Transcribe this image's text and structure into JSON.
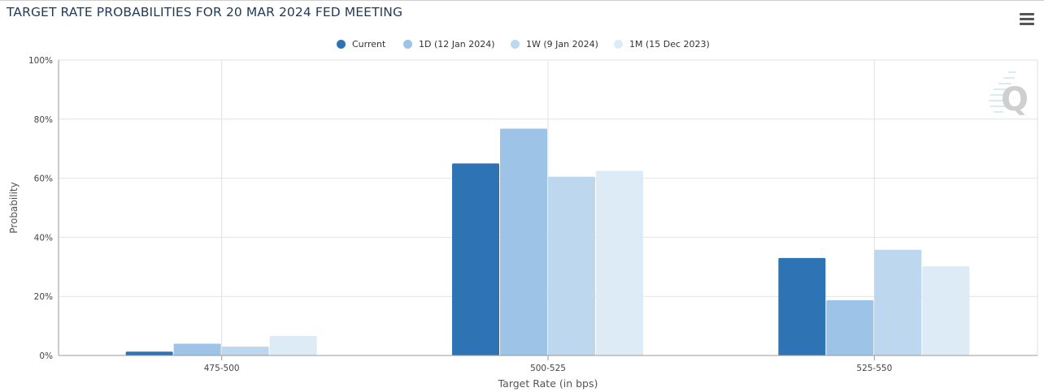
{
  "header": {
    "title": "TARGET RATE PROBABILITIES FOR 20 MAR 2024 FED MEETING",
    "menu_icon": "hamburger-menu-icon"
  },
  "watermark": {
    "icon": "q-logo-icon",
    "letter": "Q"
  },
  "colors": {
    "current": "#2e74b5",
    "d1": "#9dc3e6",
    "w1": "#bdd7ee",
    "m1": "#ddebf7",
    "grid": "#e2e2e2",
    "axis": "#999999"
  },
  "chart_data": {
    "type": "bar",
    "title": "TARGET RATE PROBABILITIES FOR 20 MAR 2024 FED MEETING",
    "xlabel": "Target Rate (in bps)",
    "ylabel": "Probability",
    "categories": [
      "475-500",
      "500-525",
      "525-550"
    ],
    "ylim": [
      0,
      100
    ],
    "yticks": [
      "0%",
      "20%",
      "40%",
      "60%",
      "80%",
      "100%"
    ],
    "ytick_values": [
      0,
      20,
      40,
      60,
      80,
      100
    ],
    "legend_position": "top-center",
    "grid": true,
    "series": [
      {
        "name": "Current",
        "color": "#2e74b5",
        "values": [
          1.3,
          65.0,
          33.0
        ]
      },
      {
        "name": "1D (12 Jan 2024)",
        "color": "#9dc3e6",
        "values": [
          4.0,
          76.8,
          18.7
        ]
      },
      {
        "name": "1W (9 Jan 2024)",
        "color": "#bdd7ee",
        "values": [
          3.0,
          60.5,
          35.8
        ]
      },
      {
        "name": "1M (15 Dec 2023)",
        "color": "#ddebf7",
        "values": [
          6.6,
          62.5,
          30.2
        ]
      }
    ]
  }
}
